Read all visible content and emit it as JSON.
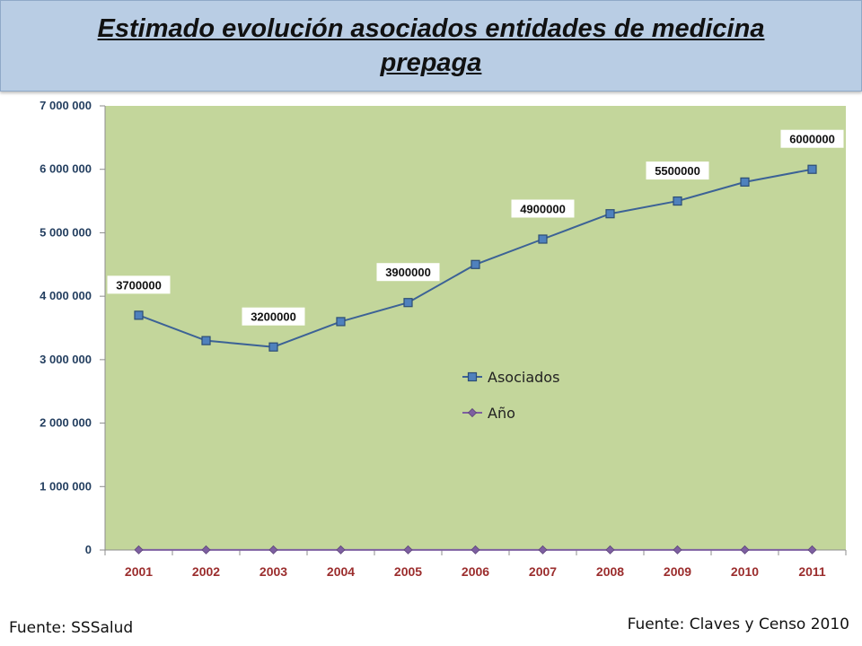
{
  "title": "Estimado evolución asociados entidades de medicina prepaga",
  "footnotes": {
    "left": "Fuente: SSSalud",
    "right": "Fuente: Claves y Censo 2010"
  },
  "colors": {
    "plot_background": "#c3d69b",
    "series_asociados": "#4f81bd",
    "series_asociados_line": "#3c6296",
    "series_anio": "#7d5fa0",
    "x_tick_text": "#9b2d2d",
    "y_tick_text": "#243f60"
  },
  "chart_data": {
    "type": "line",
    "x": [
      "2001",
      "2002",
      "2003",
      "2004",
      "2005",
      "2006",
      "2007",
      "2008",
      "2009",
      "2010",
      "2011"
    ],
    "yticks": [
      "0",
      "1 000 000",
      "2 000 000",
      "3 000 000",
      "4 000 000",
      "5 000 000",
      "6 000 000",
      "7 000 000"
    ],
    "ylim": [
      0,
      7000000
    ],
    "grid": false,
    "legend_position": "center-right",
    "series": [
      {
        "name": "Asociados",
        "marker": "square",
        "values": [
          3700000,
          3300000,
          3200000,
          3600000,
          3900000,
          4500000,
          4900000,
          5300000,
          5500000,
          5800000,
          6000000
        ],
        "data_labels": [
          {
            "index": 0,
            "text": "3700000"
          },
          {
            "index": 2,
            "text": "3200000"
          },
          {
            "index": 4,
            "text": "3900000"
          },
          {
            "index": 6,
            "text": "4900000"
          },
          {
            "index": 8,
            "text": "5500000"
          },
          {
            "index": 10,
            "text": "6000000"
          }
        ]
      },
      {
        "name": "Año",
        "marker": "diamond",
        "values": [
          2001,
          2002,
          2003,
          2004,
          2005,
          2006,
          2007,
          2008,
          2009,
          2010,
          2011
        ]
      }
    ]
  }
}
